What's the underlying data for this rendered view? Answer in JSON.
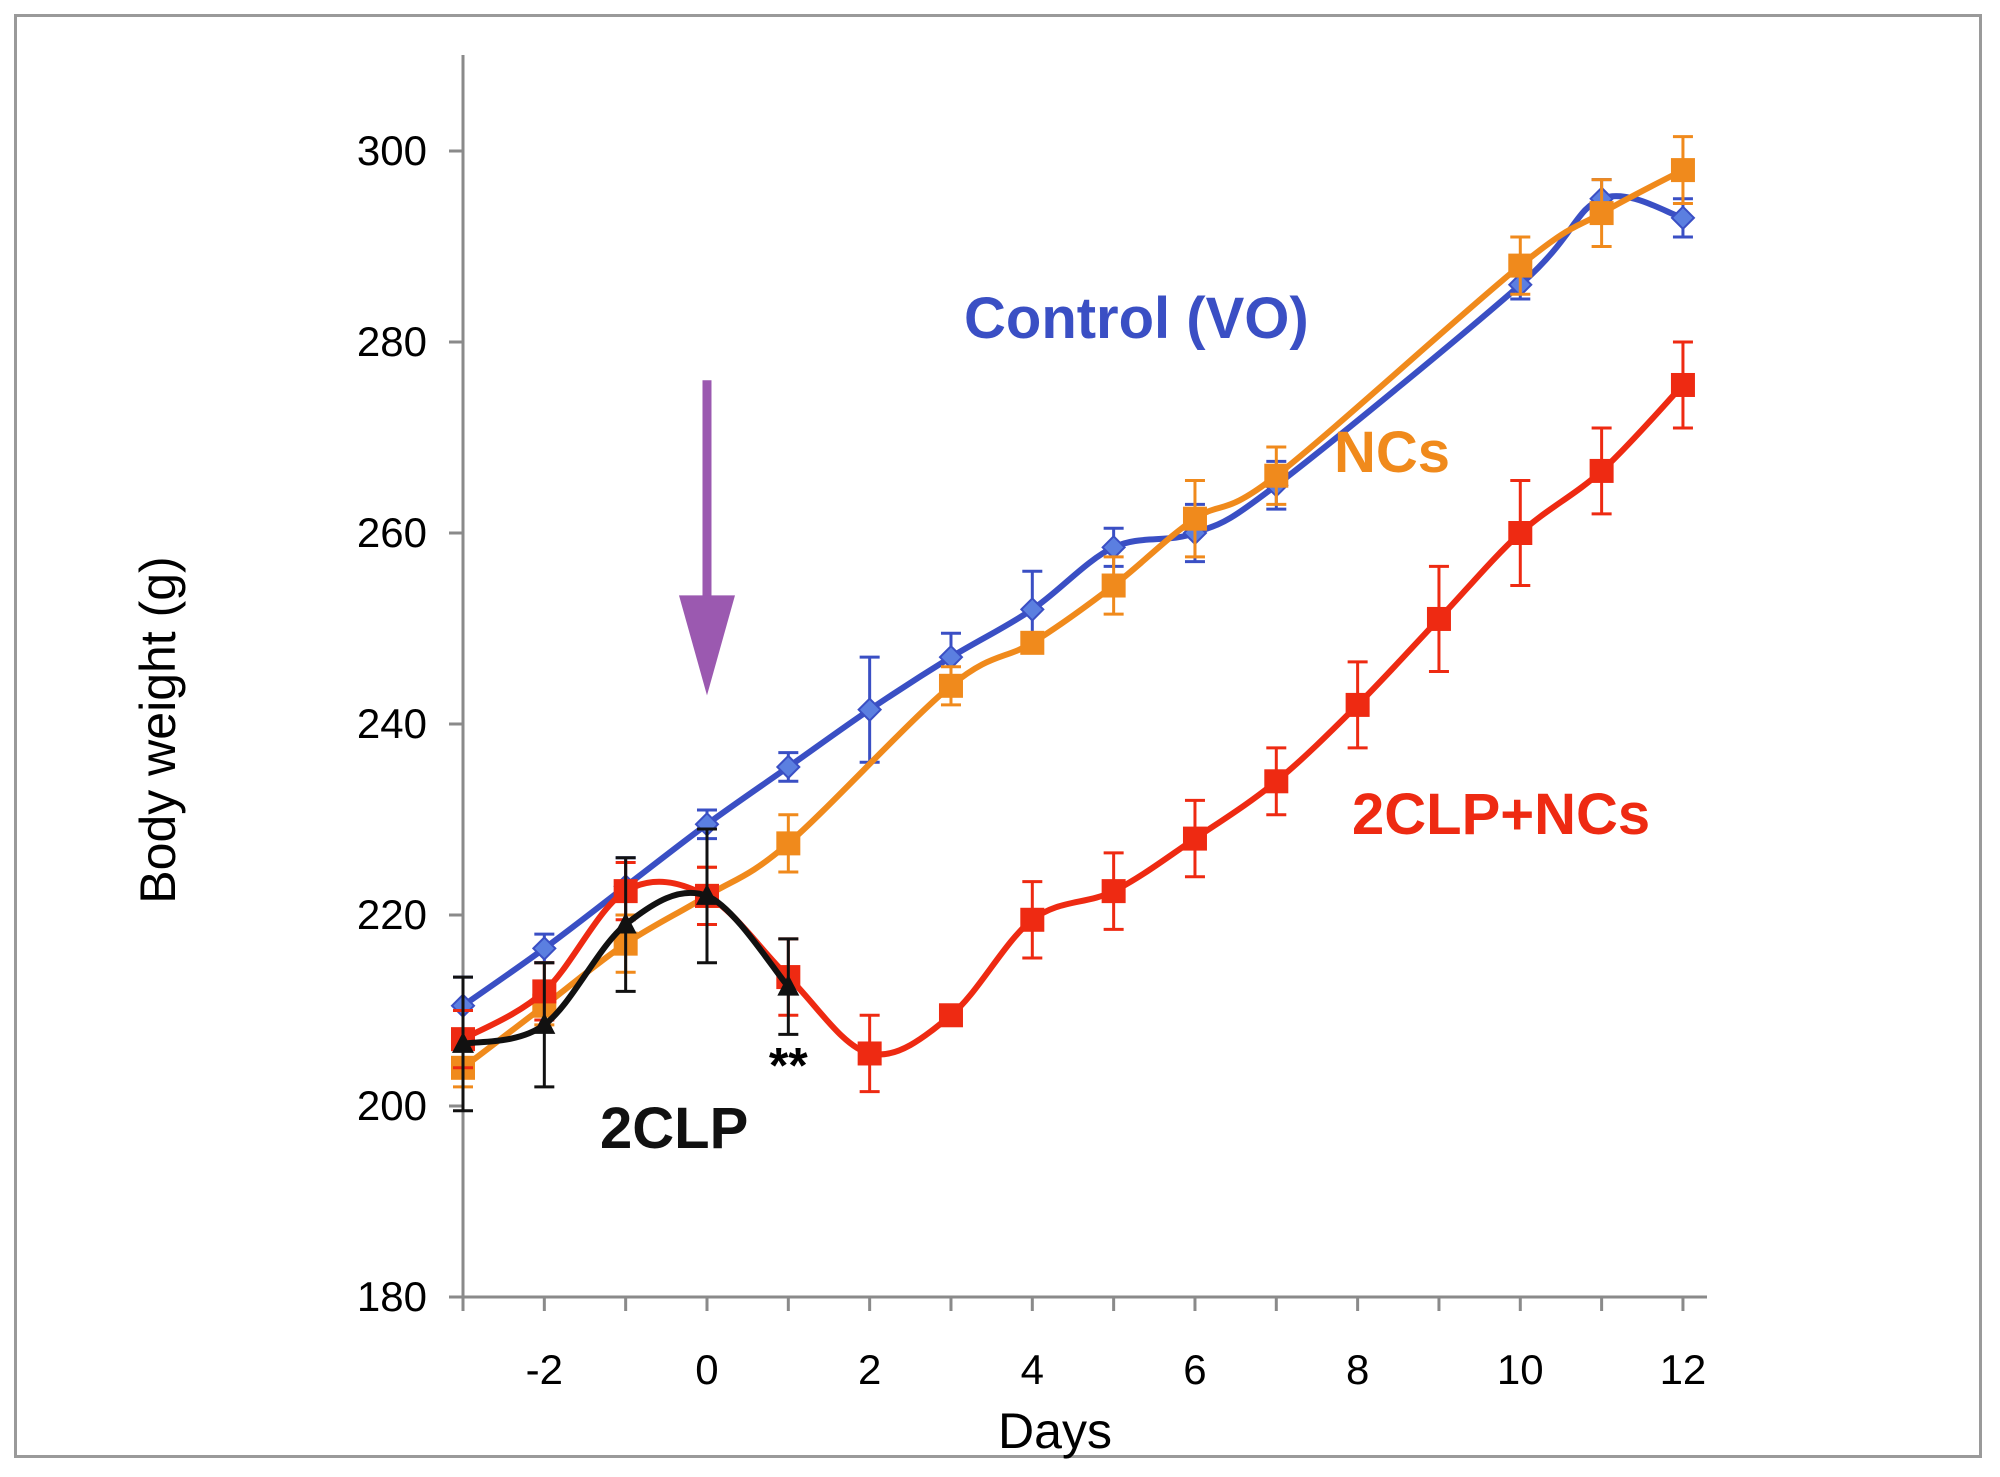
{
  "chart_data": {
    "type": "line",
    "title": "",
    "xlabel": "Days",
    "ylabel": "Body weight (g)",
    "xlim": [
      -3,
      12.3
    ],
    "ylim": [
      180,
      310
    ],
    "xticks": [
      -2,
      0,
      2,
      4,
      6,
      8,
      10,
      12
    ],
    "yticks": [
      180,
      200,
      220,
      240,
      260,
      280,
      300
    ],
    "grid": false,
    "series": [
      {
        "name": "Control (VO)",
        "color": "#3a4fc4",
        "marker": "diamond",
        "x": [
          -3,
          -2,
          -1,
          0,
          1,
          2,
          3,
          4,
          5,
          6,
          7,
          10,
          11,
          12
        ],
        "y": [
          210.5,
          216.5,
          223,
          229.5,
          235.5,
          241.5,
          247,
          252,
          258.5,
          260,
          265,
          286,
          295,
          293
        ],
        "err": [
          3,
          1.5,
          3,
          1.5,
          1.5,
          5.5,
          2.5,
          4,
          2,
          3,
          2.5,
          1.5,
          2,
          2
        ]
      },
      {
        "name": "NCs",
        "color": "#f08a1c",
        "marker": "square",
        "x": [
          -3,
          -2,
          -1,
          0,
          1,
          3,
          4,
          5,
          6,
          7,
          10,
          11,
          12
        ],
        "y": [
          204,
          210.5,
          217,
          222,
          227.5,
          244,
          248.5,
          254.5,
          261.5,
          266,
          288,
          293.5,
          298
        ],
        "err": [
          2,
          2,
          3,
          3,
          3,
          2,
          1,
          3,
          4,
          3,
          3,
          3.5,
          3.5
        ]
      },
      {
        "name": "2CLP+NCs",
        "color": "#ee2a12",
        "marker": "square",
        "x": [
          -3,
          -2,
          -1,
          0,
          1,
          2,
          3,
          4,
          5,
          6,
          7,
          8,
          9,
          10,
          11,
          12
        ],
        "y": [
          207,
          212,
          222.5,
          222,
          213.5,
          205.5,
          209.5,
          219.5,
          222.5,
          228,
          234,
          242,
          251,
          260,
          266.5,
          275.5
        ],
        "err": [
          3,
          3,
          3,
          3,
          4,
          4,
          1,
          4,
          4,
          4,
          3.5,
          4.5,
          5.5,
          5.5,
          4.5,
          4.5
        ]
      },
      {
        "name": "2CLP",
        "color": "#111111",
        "marker": "triangle",
        "x": [
          -3,
          -2,
          -1,
          0,
          1
        ],
        "y": [
          206.5,
          208.5,
          219,
          222,
          212.5
        ],
        "err": [
          7,
          6.5,
          7,
          7,
          5
        ]
      }
    ],
    "annotations": [
      {
        "type": "arrow",
        "x": 0,
        "from_y": 276,
        "to_y": 243,
        "color": "#9b59b0"
      },
      {
        "type": "text",
        "text": "**",
        "x": 1,
        "y": 203.5
      }
    ]
  }
}
